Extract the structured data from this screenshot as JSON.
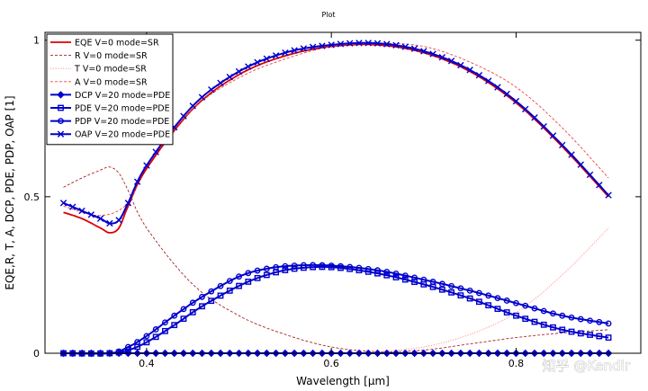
{
  "watermark": "知乎 @Kendir",
  "chart_data": {
    "type": "line",
    "title": "Plot",
    "xlabel": "Wavelength [µm]",
    "ylabel": "EQE,R, T, A, DCP, PDE, PDP, OAP [1]",
    "xlim": [
      0.29,
      0.935
    ],
    "ylim": [
      0,
      1.025
    ],
    "xticks": [
      0.4,
      0.6,
      0.8
    ],
    "xtick_labels": [
      "0.4",
      "0.6",
      "0.8"
    ],
    "yticks": [
      0,
      0.5,
      1
    ],
    "ytick_labels": [
      "0",
      "0.5",
      "1"
    ],
    "grid": false,
    "legend_position": "top-left",
    "series": [
      {
        "name": "EQE V=0 mode=SR",
        "color": "#dd0000",
        "line": "solid",
        "marker": "none",
        "x": [
          0.31,
          0.33,
          0.35,
          0.36,
          0.37,
          0.38,
          0.4,
          0.45,
          0.5,
          0.55,
          0.6,
          0.65,
          0.7,
          0.75,
          0.8,
          0.85,
          0.9
        ],
        "y": [
          0.45,
          0.43,
          0.4,
          0.385,
          0.4,
          0.47,
          0.59,
          0.78,
          0.89,
          0.95,
          0.98,
          0.985,
          0.96,
          0.9,
          0.8,
          0.66,
          0.5
        ]
      },
      {
        "name": "R V=0 mode=SR",
        "color": "#aa2222",
        "line": "dashed",
        "marker": "none",
        "x": [
          0.31,
          0.33,
          0.35,
          0.36,
          0.37,
          0.38,
          0.4,
          0.45,
          0.5,
          0.55,
          0.6,
          0.65,
          0.7,
          0.75,
          0.8,
          0.85,
          0.9
        ],
        "y": [
          0.53,
          0.56,
          0.585,
          0.595,
          0.575,
          0.52,
          0.4,
          0.22,
          0.12,
          0.06,
          0.02,
          0.005,
          0.01,
          0.03,
          0.05,
          0.065,
          0.075
        ]
      },
      {
        "name": "T V=0 mode=SR",
        "color": "#ff8888",
        "line": "dotted",
        "marker": "none",
        "x": [
          0.31,
          0.4,
          0.5,
          0.6,
          0.62,
          0.65,
          0.7,
          0.75,
          0.8,
          0.85,
          0.9
        ],
        "y": [
          0,
          0,
          0,
          0,
          0,
          0.005,
          0.02,
          0.06,
          0.13,
          0.25,
          0.4
        ]
      },
      {
        "name": "A V=0 mode=SR",
        "color": "#ee4444",
        "line": "dashed",
        "marker": "none",
        "x": [
          0.31,
          0.35,
          0.38,
          0.4,
          0.45,
          0.5,
          0.55,
          0.6,
          0.65,
          0.7,
          0.75,
          0.8,
          0.85,
          0.9
        ],
        "y": [
          0.47,
          0.44,
          0.48,
          0.6,
          0.78,
          0.88,
          0.94,
          0.98,
          0.99,
          0.98,
          0.93,
          0.85,
          0.72,
          0.56
        ]
      },
      {
        "name": "DCP V=20 mode=PDE",
        "color": "#0000cc",
        "line": "solid",
        "marker": "diamond",
        "x": [
          0.31,
          0.35,
          0.4,
          0.45,
          0.5,
          0.55,
          0.6,
          0.65,
          0.7,
          0.75,
          0.8,
          0.85,
          0.9
        ],
        "y": [
          0,
          0,
          0,
          0,
          0,
          0,
          0,
          0,
          0,
          0,
          0,
          0,
          0
        ]
      },
      {
        "name": "PDE V=20 mode=PDE",
        "color": "#0000cc",
        "line": "solid",
        "marker": "square",
        "x": [
          0.31,
          0.36,
          0.38,
          0.4,
          0.43,
          0.46,
          0.5,
          0.53,
          0.56,
          0.6,
          0.65,
          0.7,
          0.75,
          0.8,
          0.85,
          0.9
        ],
        "y": [
          0,
          0,
          0.01,
          0.035,
          0.09,
          0.15,
          0.215,
          0.25,
          0.27,
          0.275,
          0.255,
          0.22,
          0.175,
          0.12,
          0.075,
          0.05
        ]
      },
      {
        "name": "PDP V=20 mode=PDE",
        "color": "#0000cc",
        "line": "solid",
        "marker": "circle",
        "x": [
          0.31,
          0.36,
          0.38,
          0.4,
          0.43,
          0.46,
          0.5,
          0.53,
          0.56,
          0.6,
          0.65,
          0.7,
          0.75,
          0.8,
          0.85,
          0.9
        ],
        "y": [
          0,
          0,
          0.02,
          0.055,
          0.12,
          0.18,
          0.245,
          0.27,
          0.28,
          0.28,
          0.265,
          0.235,
          0.2,
          0.16,
          0.12,
          0.095
        ]
      },
      {
        "name": "OAP V=20 mode=PDE",
        "color": "#0000cc",
        "line": "solid",
        "marker": "x",
        "x": [
          0.31,
          0.33,
          0.35,
          0.36,
          0.37,
          0.38,
          0.4,
          0.45,
          0.5,
          0.55,
          0.6,
          0.65,
          0.7,
          0.75,
          0.8,
          0.85,
          0.9
        ],
        "y": [
          0.48,
          0.455,
          0.43,
          0.415,
          0.425,
          0.48,
          0.6,
          0.79,
          0.9,
          0.96,
          0.985,
          0.99,
          0.965,
          0.905,
          0.805,
          0.665,
          0.505
        ]
      }
    ]
  }
}
